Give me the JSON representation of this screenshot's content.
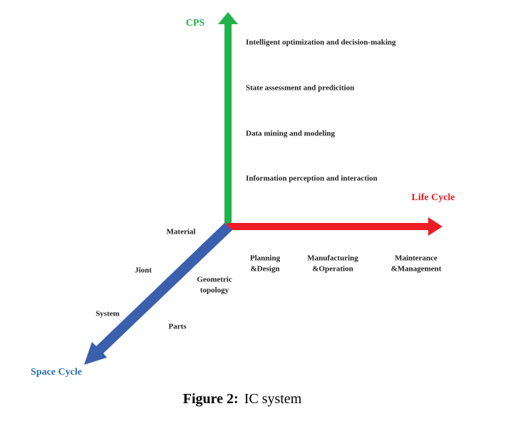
{
  "axes": {
    "cps": "CPS",
    "life_cycle": "Life Cycle",
    "space_cycle": "Space Cycle"
  },
  "cps_levels": [
    "Intelligent optimization and decision-making",
    "State assessment and predicition",
    "Data mining and modeling",
    "Information perception and interaction"
  ],
  "life_stages": [
    [
      "Planning",
      "&Design"
    ],
    [
      "Manufacturing",
      "&Operation"
    ],
    [
      "Mainterance",
      "&Management"
    ]
  ],
  "space_items": {
    "material": "Material",
    "jiont": "Jiont",
    "system": "System",
    "geometric_topology": [
      "Geometric",
      "topology"
    ],
    "parts": "Parts"
  },
  "caption": {
    "label": "Figure 2:",
    "text": "IC system"
  }
}
